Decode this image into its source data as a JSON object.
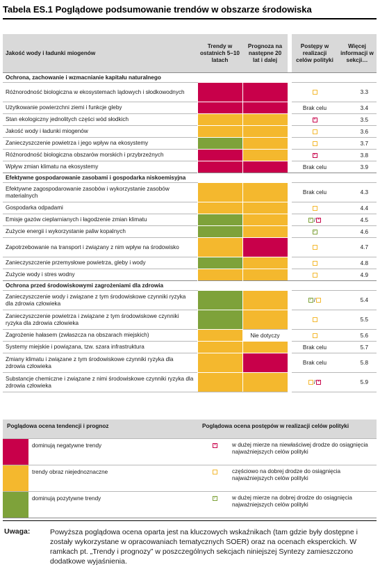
{
  "title": "Tabela ES.1 Poglądowe podsumowanie trendów w obszarze środowiska",
  "header": {
    "col_topic": "Jakość wody i ładunki miogenów",
    "col_trend": "Trendy w ostatnich 5–10 latach",
    "col_outlook": "Prognoza na następne 20 lat i dalej",
    "col_progress": "Postępy w realizacji celów polityki",
    "col_more": "Więcej informacji w sekcji…"
  },
  "sections": [
    {
      "title": "Ochrona, zachowanie i wzmacnianie kapitału naturalnego",
      "rows": [
        {
          "label": "Różnorodność biologiczna w ekosystemach lądowych i słodkowodnych",
          "trend": "red",
          "outlook": "red",
          "progress": [
            "o"
          ],
          "progress_text": "",
          "section": "3.3"
        },
        {
          "label": "Użytkowanie powierzchni ziemi i funkcje gleby",
          "trend": "red",
          "outlook": "red",
          "progress": [],
          "progress_text": "Brak celu",
          "section": "3.4"
        },
        {
          "label": "Stan ekologiczny jednolitych części wód słodkich",
          "trend": "amb",
          "outlook": "amb",
          "progress": [
            "x"
          ],
          "progress_text": "",
          "section": "3.5"
        },
        {
          "label": "Jakość wody i ładunki miogenów",
          "trend": "amb",
          "outlook": "amb",
          "progress": [
            "o"
          ],
          "progress_text": "",
          "section": "3.6"
        },
        {
          "label": "Zanieczyszczenie powietrza i jego wpływ na ekosystemy",
          "trend": "grn",
          "outlook": "amb",
          "progress": [
            "o"
          ],
          "progress_text": "",
          "section": "3.7"
        },
        {
          "label": "Różnorodność biologiczna obszarów morskich i przybrzeżnych",
          "trend": "red",
          "outlook": "amb",
          "progress": [
            "x"
          ],
          "progress_text": "",
          "section": "3.8"
        },
        {
          "label": "Wpływ zmian klimatu na ekosystemy",
          "trend": "red",
          "outlook": "red",
          "progress": [],
          "progress_text": "Brak celu",
          "section": "3.9"
        }
      ]
    },
    {
      "title": "Efektywne gospodarowanie zasobami i gospodarka niskoemisyjna",
      "rows": [
        {
          "label": "Efektywne zagospodarowanie zasobów i wykorzystanie zasobów materialnych",
          "trend": "amb",
          "outlook": "amb",
          "progress": [],
          "progress_text": "Brak celu",
          "section": "4.3"
        },
        {
          "label": "Gospodarka odpadami",
          "trend": "amb",
          "outlook": "amb",
          "progress": [
            "o"
          ],
          "progress_text": "",
          "section": "4.4"
        },
        {
          "label": "Emisje gazów cieplarnianych i łagodzenie zmian klimatu",
          "trend": "grn",
          "outlook": "amb",
          "progress": [
            "v",
            "x"
          ],
          "progress_text": "",
          "section": "4.5"
        },
        {
          "label": "Zużycie energii i wykorzystanie paliw kopalnych",
          "trend": "grn",
          "outlook": "amb",
          "progress": [
            "v"
          ],
          "progress_text": "",
          "section": "4.6"
        },
        {
          "label": "Zapotrzebowanie na transport i związany z nim wpływ na środowisko",
          "trend": "amb",
          "outlook": "red",
          "progress": [
            "o"
          ],
          "progress_text": "",
          "section": "4.7"
        },
        {
          "label": "Zanieczyszczenie przemysłowe powietrza, gleby i wody",
          "trend": "grn",
          "outlook": "amb",
          "progress": [
            "o"
          ],
          "progress_text": "",
          "section": "4.8"
        },
        {
          "label": "Zużycie wody i stres wodny",
          "trend": "amb",
          "outlook": "amb",
          "progress": [
            "o"
          ],
          "progress_text": "",
          "section": "4.9"
        }
      ]
    },
    {
      "title": "Ochrona przed środowiskowymi zagrożeniami dla zdrowia",
      "rows": [
        {
          "label": "Zanieczyszczenie wody i związane z tym środowiskowe czynniki ryzyka dla zdrowia człowieka",
          "trend": "grn",
          "outlook": "amb",
          "progress": [
            "v",
            "o"
          ],
          "progress_text": "",
          "section": "5.4"
        },
        {
          "label": "Zanieczyszczenie powietrza i związane z tym środowiskowe czynniki ryzyka dla zdrowia człowieka",
          "trend": "grn",
          "outlook": "amb",
          "progress": [
            "o"
          ],
          "progress_text": "",
          "section": "5.5"
        },
        {
          "label": "Zagrożenie hałasem (zwłaszcza na obszarach miejskich)",
          "trend": "amb",
          "outlook": "none",
          "outlook_text": "Nie dotyczy",
          "progress": [
            "o"
          ],
          "progress_text": "",
          "section": "5.6"
        },
        {
          "label": "Systemy miejskie i powiązana, tzw. szara infrastruktura",
          "trend": "amb",
          "outlook": "amb",
          "progress": [],
          "progress_text": "Brak celu",
          "section": "5.7"
        },
        {
          "label": "Zmiany klimatu i związane z tym środowiskowe czynniki ryzyka dla zdrowia człowieka",
          "trend": "amb",
          "outlook": "red",
          "progress": [],
          "progress_text": "Brak celu",
          "section": "5.8"
        },
        {
          "label": "Substancje chemiczne i związane z nimi środowiskowe czynniki ryzyka dla zdrowia człowieka",
          "trend": "amb",
          "outlook": "amb",
          "progress": [
            "o",
            "x"
          ],
          "progress_text": "",
          "section": "5.9"
        }
      ]
    }
  ],
  "legend": {
    "head_left": "Poglądowa ocena tendencji i prognoz",
    "head_right": "Poglądowa ocena postępów w realizacji celów polityki",
    "rows": [
      {
        "color": "red",
        "trend_text": "dominują negatywne trendy",
        "icon": "x",
        "progress_text": "w dużej mierze na niewłaściwej drodze do osiągnięcia najważniejszych celów polityki"
      },
      {
        "color": "amb",
        "trend_text": "trendy obraz niejednoznaczne",
        "icon": "o",
        "progress_text": "częściowo na dobrej drodze do osiągnięcia najważniejszych celów polityki"
      },
      {
        "color": "grn",
        "trend_text": "dominują pozytywne trendy",
        "icon": "v",
        "progress_text": "w dużej mierze na dobrej drodze do osiągnięcia najważniejszych celów polityki"
      }
    ]
  },
  "note": {
    "heading": "Uwaga:",
    "text": "Powyższa poglądowa ocena oparta jest na kluczowych wskaźnikach (tam gdzie były dostępne i zostały wykorzystane w opracowaniach tematycznych SOER) oraz na ocenach eksperckich. W ramkach pt. „Trendy i prognozy” w poszczególnych sekcjach niniejszej Syntezy zamieszczono dodatkowe wyjaśnienia."
  },
  "colors": {
    "red": "#c8004a",
    "amber": "#f4b82e",
    "green": "#7ea23a",
    "header_grey": "#d9d9d9"
  }
}
